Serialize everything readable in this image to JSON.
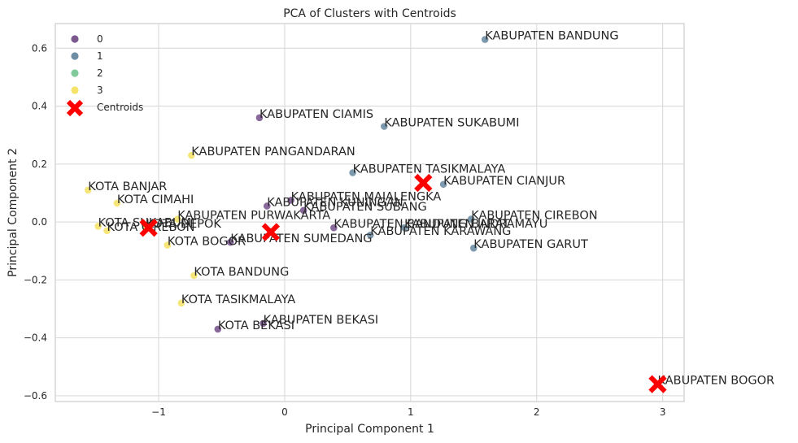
{
  "chart_data": {
    "type": "scatter",
    "title": "PCA of Clusters with Centroids",
    "xlabel": "Principal Component 1",
    "ylabel": "Principal Component 2",
    "xlim": [
      -1.82,
      3.17
    ],
    "ylim": [
      -0.62,
      0.685
    ],
    "xticks": [
      -1,
      0,
      1,
      2,
      3
    ],
    "yticks": [
      -0.6,
      -0.4,
      -0.2,
      0.0,
      0.2,
      0.4,
      0.6
    ],
    "grid": true,
    "legend_position": "top-left",
    "cluster_colors": {
      "0": "#7c5891",
      "1": "#6f8ea4",
      "2": "#7fc99a",
      "3": "#f5e36c"
    },
    "centroid_color": "#ff0000",
    "legend": [
      {
        "label": "0",
        "cluster": "0"
      },
      {
        "label": "1",
        "cluster": "1"
      },
      {
        "label": "2",
        "cluster": "2"
      },
      {
        "label": "3",
        "cluster": "3"
      },
      {
        "label": "Centroids",
        "cluster": "centroid"
      }
    ],
    "points": [
      {
        "label": "KABUPATEN BANDUNG",
        "x": 1.59,
        "y": 0.63,
        "cluster": "1"
      },
      {
        "label": "KABUPATEN CIAMIS",
        "x": -0.2,
        "y": 0.36,
        "cluster": "0"
      },
      {
        "label": "KABUPATEN SUKABUMI",
        "x": 0.79,
        "y": 0.33,
        "cluster": "1"
      },
      {
        "label": "KABUPATEN PANGANDARAN",
        "x": -0.74,
        "y": 0.23,
        "cluster": "3"
      },
      {
        "label": "KABUPATEN TASIKMALAYA",
        "x": 0.54,
        "y": 0.17,
        "cluster": "1"
      },
      {
        "label": "KABUPATEN CIANJUR",
        "x": 1.26,
        "y": 0.13,
        "cluster": "1"
      },
      {
        "label": "KOTA BANJAR",
        "x": -1.56,
        "y": 0.11,
        "cluster": "3"
      },
      {
        "label": "KOTA CIMAHI",
        "x": -1.33,
        "y": 0.065,
        "cluster": "3"
      },
      {
        "label": "KABUPATEN MAJALENGKA",
        "x": 0.05,
        "y": 0.075,
        "cluster": "0"
      },
      {
        "label": "KABUPATEN KUNINGAN",
        "x": -0.14,
        "y": 0.055,
        "cluster": "0"
      },
      {
        "label": "KABUPATEN SUBANG",
        "x": 0.15,
        "y": 0.04,
        "cluster": "0"
      },
      {
        "label": "KABUPATEN PURWAKARTA",
        "x": -0.85,
        "y": 0.01,
        "cluster": "3"
      },
      {
        "label": "KABUPATEN CIREBON",
        "x": 1.48,
        "y": 0.01,
        "cluster": "1"
      },
      {
        "label": "KABUPATEN BANDUNG BARAT",
        "x": 0.39,
        "y": -0.02,
        "cluster": "0"
      },
      {
        "label": "KABUPATEN INDRAMAYU",
        "x": 0.95,
        "y": -0.02,
        "cluster": "1"
      },
      {
        "label": "KABUPATEN KARAWANG",
        "x": 0.68,
        "y": -0.045,
        "cluster": "1"
      },
      {
        "label": "KOTA SUKABUMI",
        "x": -1.48,
        "y": -0.015,
        "cluster": "3"
      },
      {
        "label": "KOTA DEPOK",
        "x": -1.1,
        "y": -0.02,
        "cluster": "3"
      },
      {
        "label": "KOTA CIREBON",
        "x": -1.41,
        "y": -0.03,
        "cluster": "3"
      },
      {
        "label": "KABUPATEN SUMEDANG",
        "x": -0.43,
        "y": -0.07,
        "cluster": "0"
      },
      {
        "label": "KOTA BOGOR",
        "x": -0.93,
        "y": -0.08,
        "cluster": "3"
      },
      {
        "label": "KABUPATEN GARUT",
        "x": 1.5,
        "y": -0.09,
        "cluster": "1"
      },
      {
        "label": "KOTA BANDUNG",
        "x": -0.72,
        "y": -0.185,
        "cluster": "3"
      },
      {
        "label": "KOTA TASIKMALAYA",
        "x": -0.82,
        "y": -0.28,
        "cluster": "3"
      },
      {
        "label": "KABUPATEN BEKASI",
        "x": -0.17,
        "y": -0.35,
        "cluster": "0"
      },
      {
        "label": "KOTA BEKASI",
        "x": -0.53,
        "y": -0.37,
        "cluster": "0"
      },
      {
        "label": "KABUPATEN BOGOR",
        "x": 2.96,
        "y": -0.56,
        "cluster": "2"
      }
    ],
    "centroids": [
      {
        "x": 1.1,
        "y": 0.135
      },
      {
        "x": -1.08,
        "y": -0.02
      },
      {
        "x": -0.11,
        "y": -0.035
      },
      {
        "x": 2.96,
        "y": -0.56
      }
    ]
  }
}
